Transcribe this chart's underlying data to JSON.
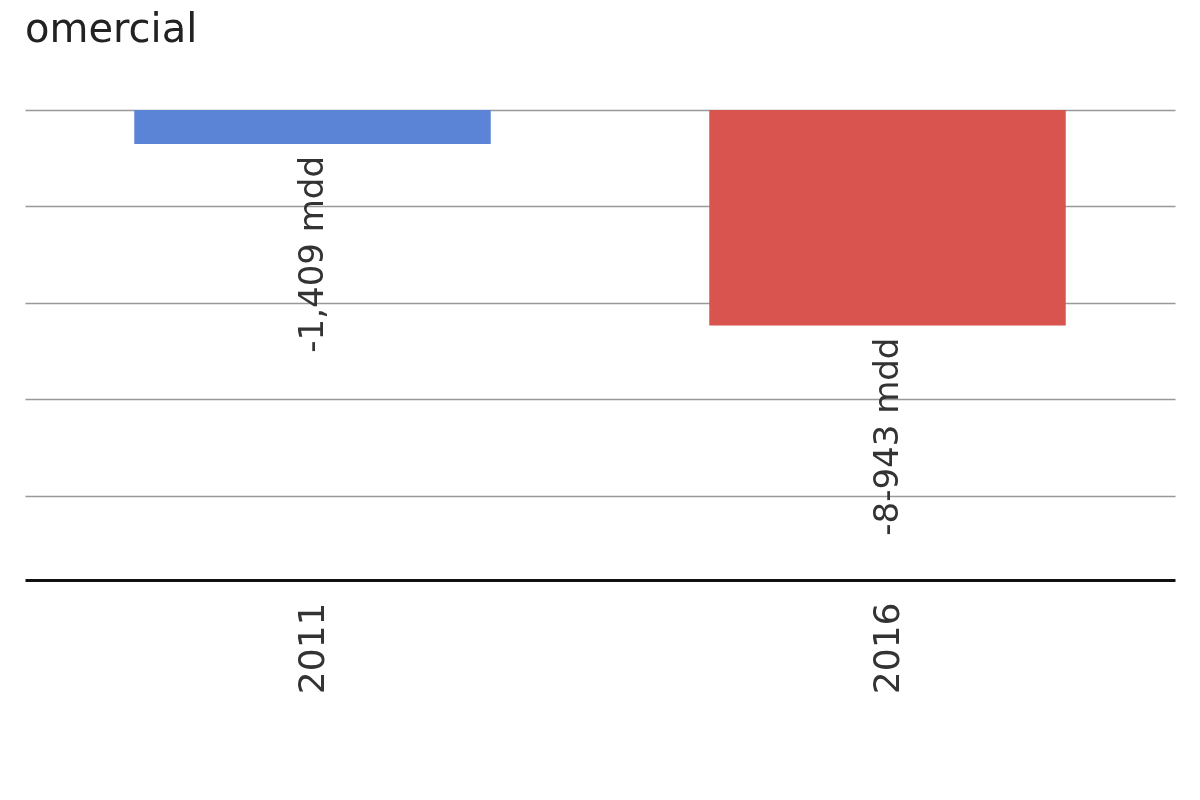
{
  "chart_data": {
    "type": "bar",
    "title": "omercial",
    "categories": [
      "2011",
      "2016"
    ],
    "values": [
      -1409,
      -8943
    ],
    "colors": [
      "#5b84d6",
      "#d9534f"
    ],
    "value_labels": [
      "-1,409 mdd",
      "-8-943 mdd"
    ],
    "ylim": [
      -19500,
      0
    ],
    "yticks": [
      {
        "value": 0,
        "label": null
      },
      {
        "value": -4000,
        "label": null
      },
      {
        "value": -8000,
        "label": null
      },
      {
        "value": -12000,
        "label": null
      },
      {
        "value": -16000,
        "label": null
      }
    ],
    "grid": "y",
    "tick_labels": "x"
  }
}
